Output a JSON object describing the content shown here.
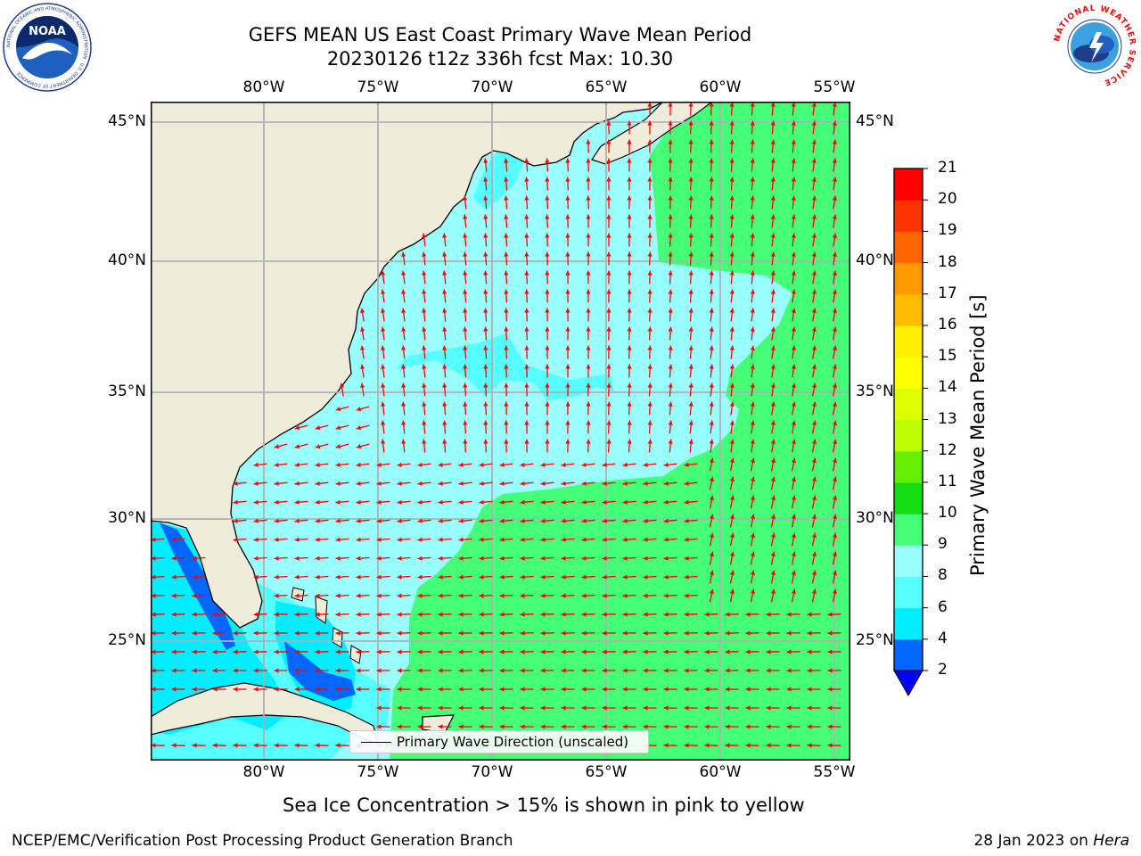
{
  "title": {
    "line1": "GEFS MEAN US East Coast Primary Wave Mean Period",
    "line2": "20230126 t12z 336h fcst   Max: 10.30"
  },
  "map": {
    "lon_ticks": [
      "80°W",
      "75°W",
      "70°W",
      "65°W",
      "60°W",
      "55°W"
    ],
    "lat_ticks": [
      "45°N",
      "40°N",
      "35°N",
      "30°N",
      "25°N"
    ],
    "legend_label": "Primary Wave Direction (unscaled)",
    "colors": {
      "land": "#efecdc",
      "coast": "#000000",
      "grid": "#b0b0b0",
      "arrow": "#ff0000",
      "period_2_4": "#0066ff",
      "period_4_6": "#00eeff",
      "period_6_8": "#55ffff",
      "period_8_9": "#99ffff",
      "period_9_10": "#44ff77"
    }
  },
  "colorbar": {
    "label": "Primary Wave Mean Period [s]",
    "ticks": [
      "2",
      "4",
      "6",
      "8",
      "9",
      "10",
      "11",
      "12",
      "13",
      "14",
      "15",
      "16",
      "17",
      "18",
      "19",
      "20",
      "21"
    ],
    "colors": [
      "#0066ff",
      "#00eeff",
      "#55ffff",
      "#99ffff",
      "#44ff77",
      "#11dd11",
      "#66ee00",
      "#bbff00",
      "#ddff00",
      "#ffff00",
      "#ffee00",
      "#ffbb00",
      "#ff9900",
      "#ff6600",
      "#ff3300",
      "#ff0000"
    ],
    "extend_color": "#0000ff"
  },
  "note": "Sea Ice Concentration > 15% is shown in pink to yellow",
  "footer": {
    "left": "NCEP/EMC/Verification Post Processing Product Generation Branch",
    "date": "28 Jan 2023 on",
    "machine": "Hera"
  },
  "logos": {
    "noaa_text": "NOAA",
    "noaa_ring": "NATIONAL OCEANIC AND ATMOSPHERIC ADMINISTRATION · U.S. DEPARTMENT OF COMMERCE",
    "nws_ring": "NATIONAL WEATHER SERVICE"
  }
}
